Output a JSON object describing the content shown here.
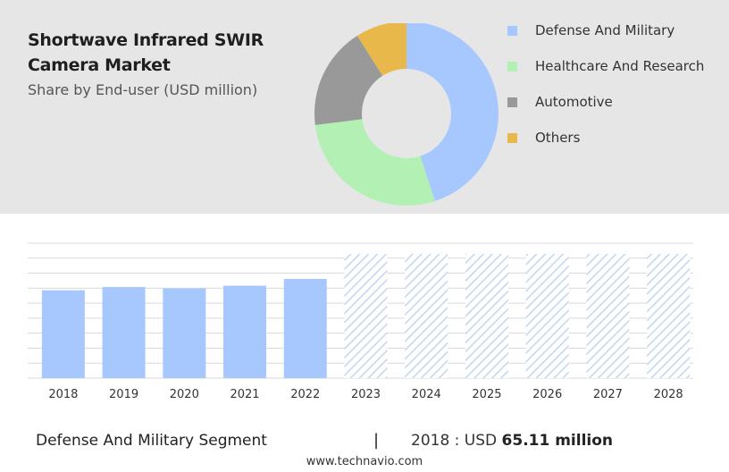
{
  "chart_data": [
    {
      "type": "pie",
      "title": "Shortwave Infrared SWIR Camera Market",
      "subtitle": "Share by End-user (USD million)",
      "legend_position": "right",
      "slices": [
        {
          "label": "Defense And Military",
          "value": 45,
          "color": "#a6c8ff"
        },
        {
          "label": "Healthcare And Research",
          "value": 28,
          "color": "#b3f0b3"
        },
        {
          "label": "Automotive",
          "value": 18,
          "color": "#999999"
        },
        {
          "label": "Others",
          "value": 9,
          "color": "#e8b84a"
        }
      ]
    },
    {
      "type": "bar",
      "categories": [
        "2018",
        "2019",
        "2020",
        "2021",
        "2022",
        "2023",
        "2024",
        "2025",
        "2026",
        "2027",
        "2028"
      ],
      "values": [
        65.11,
        67.5,
        66.5,
        68.5,
        73.5,
        null,
        null,
        null,
        null,
        null,
        null
      ],
      "forecast_categories": [
        "2023",
        "2024",
        "2025",
        "2026",
        "2027",
        "2028"
      ],
      "ylim": [
        0,
        100
      ],
      "grid": true,
      "bar_color": "#a6c8ff",
      "forecast_color": "#c2d5ef"
    }
  ],
  "footer": {
    "segment": "Defense And Military Segment",
    "divider": "|",
    "year_prefix": "2018 : USD",
    "value": "65.11 million"
  },
  "source": "www.technavio.com"
}
